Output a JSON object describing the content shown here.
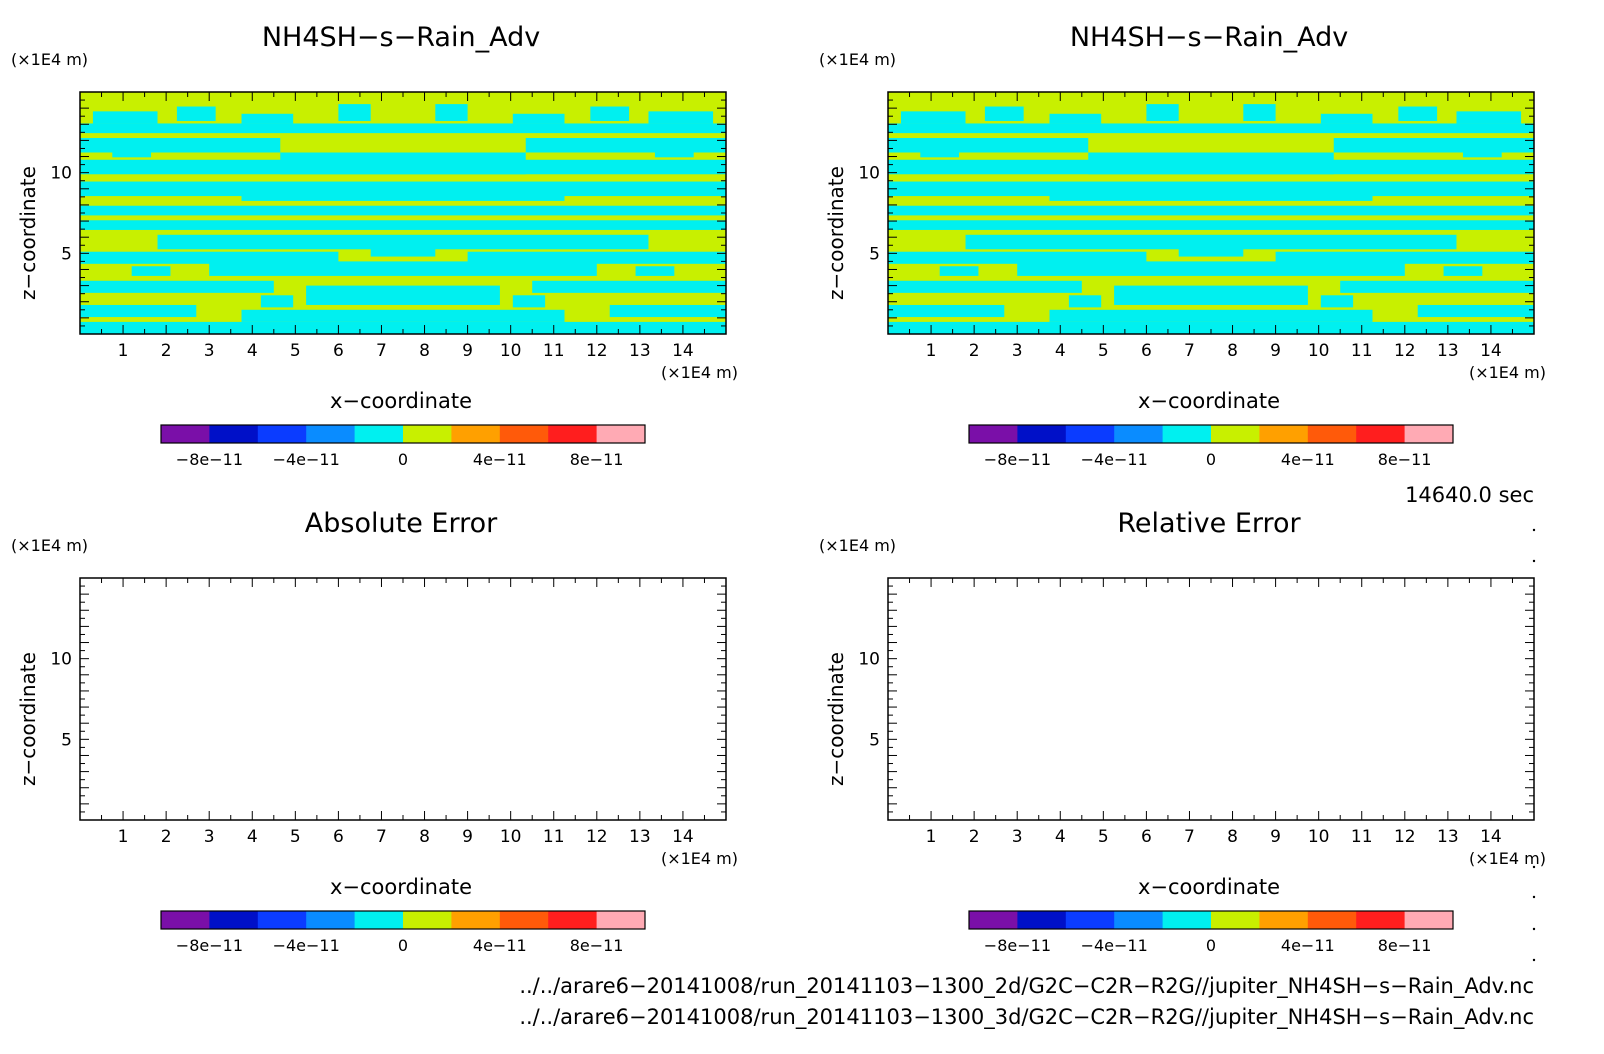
{
  "chart_data": [
    {
      "type": "heatmap",
      "title": "NH4SH−s−Rain_Adv",
      "xlabel": "x−coordinate",
      "ylabel": "z−coordinate",
      "x_unit": "(×1E4 m)",
      "y_unit": "(×1E4 m)",
      "xlim": [
        0,
        15
      ],
      "ylim": [
        0,
        15
      ],
      "x_ticks": [
        "1",
        "2",
        "3",
        "4",
        "5",
        "6",
        "7",
        "8",
        "9",
        "10",
        "11",
        "12",
        "13",
        "14"
      ],
      "y_ticks": [
        "5",
        "10"
      ],
      "field": "banded alternating values between 0 and 2e-11 (cyan / yellow-green)",
      "colorbar": {
        "colors": [
          "#7a0fa8",
          "#0010c8",
          "#0b3cff",
          "#0a8cff",
          "#00f0f0",
          "#c8f000",
          "#ffa000",
          "#ff5a0a",
          "#ff1e1e",
          "#ffaab4"
        ],
        "tick_labels": [
          "−8e−11",
          "−4e−11",
          "0",
          "4e−11",
          "8e−11"
        ]
      }
    },
    {
      "type": "heatmap",
      "title": "NH4SH−s−Rain_Adv",
      "xlabel": "x−coordinate",
      "ylabel": "z−coordinate",
      "x_unit": "(×1E4 m)",
      "y_unit": "(×1E4 m)",
      "xlim": [
        0,
        15
      ],
      "ylim": [
        0,
        15
      ],
      "x_ticks": [
        "1",
        "2",
        "3",
        "4",
        "5",
        "6",
        "7",
        "8",
        "9",
        "10",
        "11",
        "12",
        "13",
        "14"
      ],
      "y_ticks": [
        "5",
        "10"
      ],
      "field": "banded alternating values between 0 and 2e-11 (cyan / yellow-green)",
      "colorbar": {
        "colors": [
          "#7a0fa8",
          "#0010c8",
          "#0b3cff",
          "#0a8cff",
          "#00f0f0",
          "#c8f000",
          "#ffa000",
          "#ff5a0a",
          "#ff1e1e",
          "#ffaab4"
        ],
        "tick_labels": [
          "−8e−11",
          "−4e−11",
          "0",
          "4e−11",
          "8e−11"
        ]
      }
    },
    {
      "type": "heatmap",
      "title": "Absolute Error",
      "xlabel": "x−coordinate",
      "ylabel": "z−coordinate",
      "x_unit": "(×1E4 m)",
      "y_unit": "(×1E4 m)",
      "xlim": [
        0,
        15
      ],
      "ylim": [
        0,
        15
      ],
      "x_ticks": [
        "1",
        "2",
        "3",
        "4",
        "5",
        "6",
        "7",
        "8",
        "9",
        "10",
        "11",
        "12",
        "13",
        "14"
      ],
      "y_ticks": [
        "5",
        "10"
      ],
      "field": "empty",
      "colorbar": {
        "colors": [
          "#7a0fa8",
          "#0010c8",
          "#0b3cff",
          "#0a8cff",
          "#00f0f0",
          "#c8f000",
          "#ffa000",
          "#ff5a0a",
          "#ff1e1e",
          "#ffaab4"
        ],
        "tick_labels": [
          "−8e−11",
          "−4e−11",
          "0",
          "4e−11",
          "8e−11"
        ]
      }
    },
    {
      "type": "heatmap",
      "title": "Relative Error",
      "xlabel": "x−coordinate",
      "ylabel": "z−coordinate",
      "x_unit": "(×1E4 m)",
      "y_unit": "(×1E4 m)",
      "xlim": [
        0,
        15
      ],
      "ylim": [
        0,
        15
      ],
      "x_ticks": [
        "1",
        "2",
        "3",
        "4",
        "5",
        "6",
        "7",
        "8",
        "9",
        "10",
        "11",
        "12",
        "13",
        "14"
      ],
      "y_ticks": [
        "5",
        "10"
      ],
      "field": "empty",
      "colorbar": {
        "colors": [
          "#7a0fa8",
          "#0010c8",
          "#0b3cff",
          "#0a8cff",
          "#00f0f0",
          "#c8f000",
          "#ffa000",
          "#ff5a0a",
          "#ff1e1e",
          "#ffaab4"
        ],
        "tick_labels": [
          "−8e−11",
          "−4e−11",
          "0",
          "4e−11",
          "8e−11"
        ]
      }
    }
  ],
  "time_label": "14640.0 sec",
  "file_paths": [
    "../../arare6−20141008/run_20141103−1300_2d/G2C−C2R−R2G//jupiter_NH4SH−s−Rain_Adv.nc",
    "../../arare6−20141008/run_20141103−1300_3d/G2C−C2R−R2G//jupiter_NH4SH−s−Rain_Adv.nc"
  ],
  "colors": {
    "field_low": "#00f0f0",
    "field_high": "#c8f000"
  }
}
